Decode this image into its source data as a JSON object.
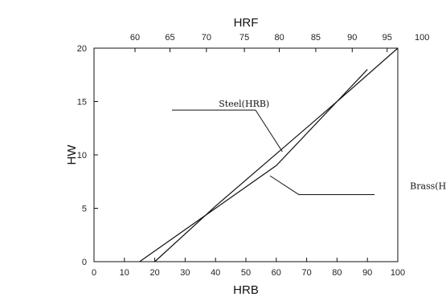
{
  "chart_data": {
    "type": "line",
    "xlabel": "HRB",
    "ylabel": "HW",
    "x2label": "HRF",
    "xlim": [
      0,
      100
    ],
    "ylim": [
      0,
      20
    ],
    "x_ticks": [
      0,
      10,
      20,
      30,
      40,
      50,
      60,
      70,
      80,
      90,
      100
    ],
    "y_ticks": [
      0,
      5,
      10,
      15,
      20
    ],
    "x2_ticks": [
      {
        "label": "60",
        "hrb": 13.5
      },
      {
        "label": "65",
        "hrb": 25
      },
      {
        "label": "70",
        "hrb": 37
      },
      {
        "label": "75",
        "hrb": 49.5
      },
      {
        "label": "80",
        "hrb": 61
      },
      {
        "label": "85",
        "hrb": 73
      },
      {
        "label": "90",
        "hrb": 85
      },
      {
        "label": "95",
        "hrb": 96.5
      },
      {
        "label": "100",
        "hrb": 108
      }
    ],
    "grid": false,
    "series": [
      {
        "name": "Steel(HRB)",
        "x": [
          15,
          40,
          60,
          80,
          100
        ],
        "y": [
          0,
          5,
          9,
          15,
          20
        ]
      },
      {
        "name": "Brass(HRF)",
        "x": [
          20,
          40,
          60,
          80,
          90
        ],
        "y": [
          0,
          5.2,
          10.1,
          15,
          18
        ]
      }
    ],
    "annotations": [
      {
        "label": "Steel(HRB)",
        "text_at": [
          40,
          14.5
        ],
        "points_to": [
          62,
          10.3
        ]
      },
      {
        "label": "Brass(HRF)",
        "text_at": [
          104,
          6.8
        ],
        "points_to": [
          68,
          10.5
        ]
      }
    ]
  }
}
